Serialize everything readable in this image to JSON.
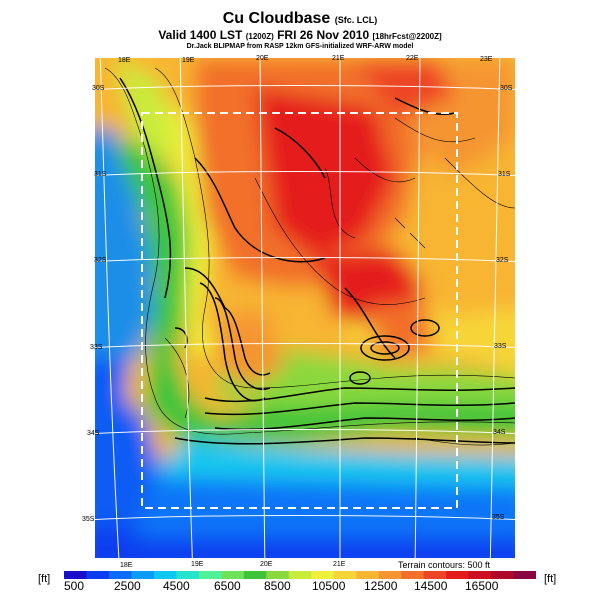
{
  "header": {
    "title": "Cu Cloudbase",
    "title_qualifier": "(Sfc. LCL)",
    "valid": "Valid 1400 LST",
    "valid_code": "(1200Z)",
    "valid_date": "FRI 26 Nov 2010",
    "forecast": "[18hrFcst@2200Z]",
    "credit": "Dr.Jack BLIPMAP from RASP 12km GFS-initialized WRF-ARW model"
  },
  "map": {
    "lon_labels_top": [
      "18E",
      "19E",
      "20E",
      "21E",
      "22E",
      "23E"
    ],
    "lon_labels_bottom": [
      "18E",
      "19E",
      "20E",
      "21E"
    ],
    "lat_labels_left": [
      "30S",
      "31S",
      "32S",
      "33S",
      "34S",
      "35S"
    ],
    "lat_labels_right": [
      "30S",
      "31S",
      "32S",
      "33S",
      "34S",
      "35S"
    ],
    "terrain_note": "Terrain contours: 500 ft"
  },
  "colorbar": {
    "unit_left": "[ft]",
    "unit_right": "[ft]",
    "labels": [
      "500",
      "2500",
      "4500",
      "6500",
      "8500",
      "10500",
      "12500",
      "14500",
      "16500"
    ],
    "colors": [
      "#1a0fc9",
      "#0a3cf0",
      "#0a6cf8",
      "#0a9cfb",
      "#0ec7f2",
      "#26e3cb",
      "#4ef09a",
      "#6fe05a",
      "#3dc43a",
      "#8ad83e",
      "#c8ec3a",
      "#eef03a",
      "#f7d538",
      "#f7b533",
      "#f59530",
      "#f2702b",
      "#ee4426",
      "#e51c1c",
      "#cc1020",
      "#b0082a",
      "#8a0640"
    ]
  }
}
